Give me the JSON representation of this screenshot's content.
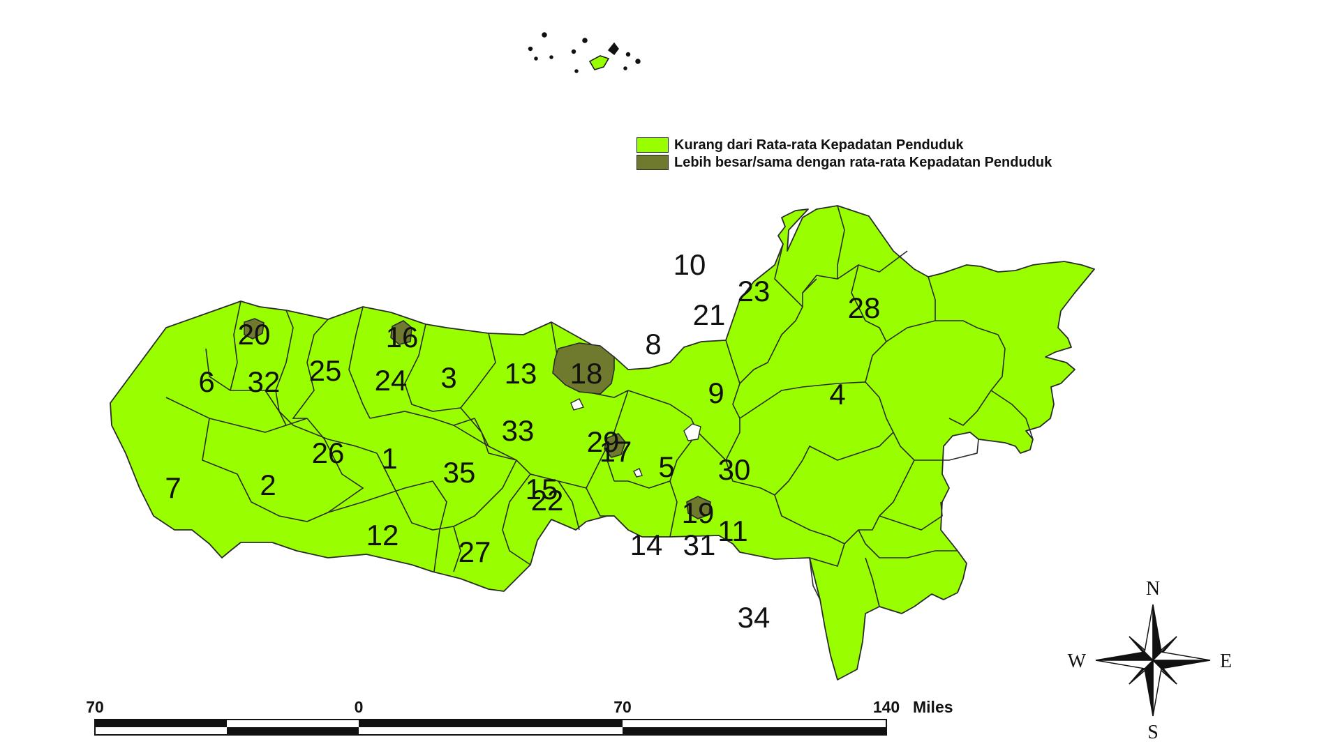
{
  "colors": {
    "below_average": "#99ff00",
    "above_average": "#6f7a2f",
    "boundary": "#2a2a2a",
    "background": "#ffffff"
  },
  "legend": {
    "items": [
      {
        "label": "Kurang dari Rata-rata Kepadatan Penduduk",
        "color": "#99ff00"
      },
      {
        "label": "Lebih besar/sama dengan rata-rata Kepadatan Penduduk",
        "color": "#6f7a2f"
      }
    ]
  },
  "regions": [
    {
      "id": "1",
      "class": "below_average"
    },
    {
      "id": "2",
      "class": "below_average"
    },
    {
      "id": "3",
      "class": "below_average"
    },
    {
      "id": "4",
      "class": "below_average"
    },
    {
      "id": "5",
      "class": "below_average"
    },
    {
      "id": "6",
      "class": "below_average"
    },
    {
      "id": "7",
      "class": "below_average"
    },
    {
      "id": "8",
      "class": "below_average"
    },
    {
      "id": "9",
      "class": "below_average"
    },
    {
      "id": "10",
      "class": "below_average"
    },
    {
      "id": "11",
      "class": "below_average"
    },
    {
      "id": "12",
      "class": "below_average"
    },
    {
      "id": "13",
      "class": "below_average"
    },
    {
      "id": "14",
      "class": "below_average"
    },
    {
      "id": "15",
      "class": "below_average"
    },
    {
      "id": "16",
      "class": "above_average"
    },
    {
      "id": "17",
      "class": "above_average"
    },
    {
      "id": "18",
      "class": "above_average"
    },
    {
      "id": "19",
      "class": "above_average"
    },
    {
      "id": "20",
      "class": "above_average"
    },
    {
      "id": "21",
      "class": "below_average"
    },
    {
      "id": "22",
      "class": "below_average"
    },
    {
      "id": "23",
      "class": "below_average"
    },
    {
      "id": "24",
      "class": "below_average"
    },
    {
      "id": "25",
      "class": "below_average"
    },
    {
      "id": "26",
      "class": "below_average"
    },
    {
      "id": "27",
      "class": "below_average"
    },
    {
      "id": "28",
      "class": "below_average"
    },
    {
      "id": "29",
      "class": "below_average"
    },
    {
      "id": "30",
      "class": "below_average"
    },
    {
      "id": "31",
      "class": "below_average"
    },
    {
      "id": "32",
      "class": "below_average"
    },
    {
      "id": "33",
      "class": "below_average"
    },
    {
      "id": "34",
      "class": "below_average"
    },
    {
      "id": "35",
      "class": "below_average"
    }
  ],
  "scale_bar": {
    "ticks": [
      "70",
      "0",
      "70",
      "140"
    ],
    "unit": "Miles"
  },
  "compass": {
    "north": "N",
    "south": "S",
    "east": "E",
    "west": "W"
  }
}
